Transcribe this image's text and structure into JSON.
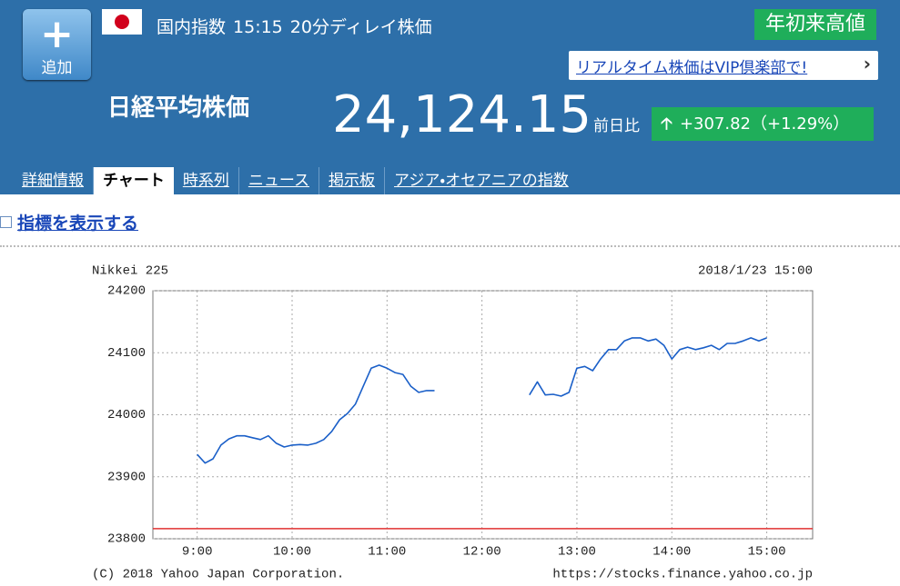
{
  "header": {
    "add_button": "追加",
    "market": "国内指数",
    "time": "15:15",
    "delay_note": "20分ディレイ株価",
    "badge": "年初来高値",
    "vip_link": "リアルタイム株価はVIP倶楽部で!",
    "name": "日経平均株価",
    "price": "24,124.15",
    "change_label": "前日比",
    "change": "+307.82（+1.29%）"
  },
  "tabs": [
    "詳細情報",
    "チャート",
    "時系列",
    "ニュース",
    "掲示板",
    "アジア・オセアニアの指数"
  ],
  "toggle": "指標を表示する",
  "chart_data": {
    "type": "line",
    "title": "Nikkei 225",
    "timestamp": "2018/1/23 15:00",
    "footer_left": "(C) 2018 Yahoo Japan Corporation.",
    "footer_right": "https://stocks.finance.yahoo.co.jp",
    "x": [
      540,
      545,
      550,
      555,
      560,
      565,
      570,
      575,
      580,
      585,
      590,
      595,
      600,
      605,
      610,
      615,
      620,
      625,
      630,
      635,
      640,
      645,
      650,
      655,
      660,
      665,
      670,
      675,
      680,
      685,
      690,
      720,
      750,
      755,
      760,
      765,
      770,
      775,
      780,
      785,
      790,
      795,
      800,
      805,
      810,
      815,
      820,
      825,
      830,
      835,
      840,
      845,
      850,
      855,
      860,
      865,
      870,
      875,
      880,
      885,
      890,
      895,
      900
    ],
    "values": [
      23936,
      23922,
      23929,
      23951,
      23961,
      23966,
      23966,
      23963,
      23960,
      23966,
      23954,
      23948,
      23951,
      23952,
      23951,
      23954,
      23960,
      23973,
      23992,
      24002,
      24017,
      24046,
      24075,
      24080,
      24075,
      24068,
      24065,
      24046,
      24036,
      24039,
      24039,
      null,
      24032,
      24053,
      24032,
      24033,
      24030,
      24036,
      24075,
      24078,
      24071,
      24090,
      24105,
      24105,
      24119,
      24124,
      24124,
      24119,
      24122,
      24112,
      24090,
      24105,
      24109,
      24105,
      24108,
      24112,
      24105,
      24115,
      24115,
      24119,
      24124,
      24119,
      24124
    ],
    "color": "#1a5fc8",
    "reference_line": {
      "value": 23816.33,
      "color": "#e03030"
    },
    "xlim": [
      512,
      929
    ],
    "xticks": [
      {
        "value": 540,
        "label": "9:00"
      },
      {
        "value": 600,
        "label": "10:00"
      },
      {
        "value": 660,
        "label": "11:00"
      },
      {
        "value": 720,
        "label": "12:00"
      },
      {
        "value": 780,
        "label": "13:00"
      },
      {
        "value": 840,
        "label": "14:00"
      },
      {
        "value": 900,
        "label": "15:00"
      }
    ],
    "ylim": [
      23800,
      24200
    ],
    "yticks": [
      23800,
      23900,
      24000,
      24100,
      24200
    ],
    "grid": true
  }
}
